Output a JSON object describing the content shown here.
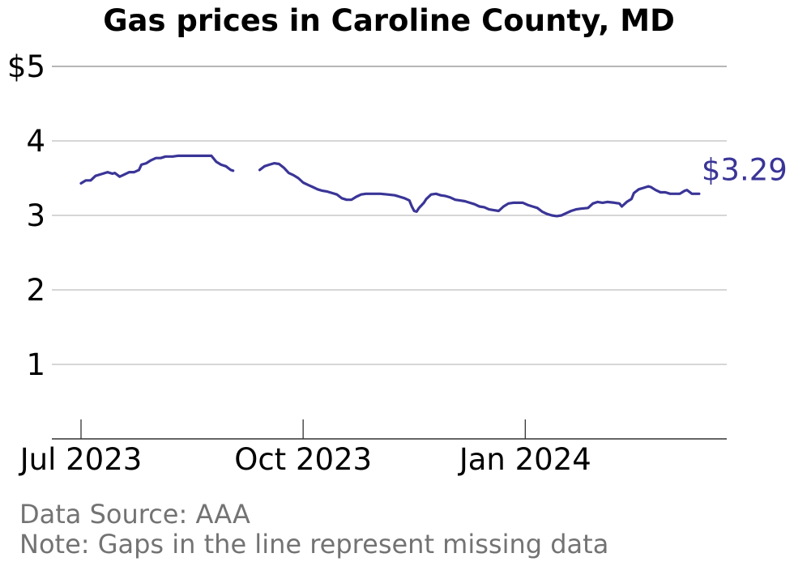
{
  "chart_data": {
    "type": "line",
    "title": "Gas prices in Caroline County, MD",
    "ylabel": "",
    "xlabel": "",
    "ylim": [
      0,
      5
    ],
    "y_ticks": [
      {
        "value": 5,
        "label": "$5"
      },
      {
        "value": 4,
        "label": "4"
      },
      {
        "value": 3,
        "label": "3"
      },
      {
        "value": 2,
        "label": "2"
      },
      {
        "value": 1,
        "label": "1"
      }
    ],
    "x_ticks": [
      {
        "date": "2023-07-01",
        "label": "Jul 2023"
      },
      {
        "date": "2023-10-01",
        "label": "Oct 2023"
      },
      {
        "date": "2024-01-01",
        "label": "Jan 2024"
      }
    ],
    "xlim": [
      "2023-06-20",
      "2024-03-30"
    ],
    "grid": true,
    "line_color": "#3a3597",
    "end_label": "$3.29",
    "series": [
      {
        "segments": [
          [
            [
              "2023-07-01",
              3.43
            ],
            [
              "2023-07-03",
              3.47
            ],
            [
              "2023-07-05",
              3.47
            ],
            [
              "2023-07-07",
              3.53
            ],
            [
              "2023-07-10",
              3.56
            ],
            [
              "2023-07-12",
              3.58
            ],
            [
              "2023-07-14",
              3.56
            ],
            [
              "2023-07-15",
              3.57
            ],
            [
              "2023-07-17",
              3.52
            ],
            [
              "2023-07-19",
              3.55
            ],
            [
              "2023-07-21",
              3.58
            ],
            [
              "2023-07-23",
              3.58
            ],
            [
              "2023-07-25",
              3.61
            ],
            [
              "2023-07-26",
              3.68
            ],
            [
              "2023-07-28",
              3.7
            ],
            [
              "2023-07-30",
              3.74
            ],
            [
              "2023-08-01",
              3.77
            ],
            [
              "2023-08-03",
              3.77
            ],
            [
              "2023-08-05",
              3.79
            ],
            [
              "2023-08-08",
              3.79
            ],
            [
              "2023-08-10",
              3.8
            ],
            [
              "2023-08-13",
              3.8
            ],
            [
              "2023-08-16",
              3.8
            ],
            [
              "2023-08-20",
              3.8
            ],
            [
              "2023-08-24",
              3.8
            ],
            [
              "2023-08-26",
              3.72
            ],
            [
              "2023-08-28",
              3.68
            ],
            [
              "2023-08-30",
              3.66
            ],
            [
              "2023-09-01",
              3.61
            ],
            [
              "2023-09-02",
              3.6
            ]
          ],
          [
            [
              "2023-09-13",
              3.61
            ],
            [
              "2023-09-15",
              3.66
            ],
            [
              "2023-09-17",
              3.68
            ],
            [
              "2023-09-19",
              3.7
            ],
            [
              "2023-09-21",
              3.69
            ],
            [
              "2023-09-23",
              3.64
            ],
            [
              "2023-09-25",
              3.57
            ],
            [
              "2023-09-27",
              3.54
            ],
            [
              "2023-09-29",
              3.5
            ],
            [
              "2023-10-01",
              3.44
            ],
            [
              "2023-10-03",
              3.41
            ],
            [
              "2023-10-05",
              3.38
            ],
            [
              "2023-10-07",
              3.35
            ],
            [
              "2023-10-09",
              3.33
            ],
            [
              "2023-10-11",
              3.32
            ],
            [
              "2023-10-13",
              3.3
            ],
            [
              "2023-10-15",
              3.28
            ],
            [
              "2023-10-17",
              3.23
            ],
            [
              "2023-10-19",
              3.21
            ],
            [
              "2023-10-21",
              3.21
            ],
            [
              "2023-10-23",
              3.25
            ],
            [
              "2023-10-25",
              3.28
            ],
            [
              "2023-10-27",
              3.29
            ],
            [
              "2023-10-30",
              3.29
            ],
            [
              "2023-11-02",
              3.29
            ],
            [
              "2023-11-05",
              3.28
            ],
            [
              "2023-11-08",
              3.27
            ],
            [
              "2023-11-10",
              3.25
            ],
            [
              "2023-11-12",
              3.23
            ],
            [
              "2023-11-14",
              3.2
            ],
            [
              "2023-11-15",
              3.12
            ],
            [
              "2023-11-16",
              3.06
            ],
            [
              "2023-11-17",
              3.05
            ],
            [
              "2023-11-18",
              3.1
            ],
            [
              "2023-11-20",
              3.17
            ],
            [
              "2023-11-21",
              3.22
            ],
            [
              "2023-11-23",
              3.28
            ],
            [
              "2023-11-25",
              3.29
            ],
            [
              "2023-11-27",
              3.27
            ],
            [
              "2023-11-29",
              3.26
            ],
            [
              "2023-12-01",
              3.24
            ],
            [
              "2023-12-03",
              3.21
            ],
            [
              "2023-12-05",
              3.2
            ],
            [
              "2023-12-07",
              3.19
            ],
            [
              "2023-12-09",
              3.17
            ],
            [
              "2023-12-11",
              3.15
            ],
            [
              "2023-12-13",
              3.12
            ],
            [
              "2023-12-15",
              3.11
            ],
            [
              "2023-12-17",
              3.08
            ],
            [
              "2023-12-19",
              3.07
            ],
            [
              "2023-12-21",
              3.06
            ],
            [
              "2023-12-23",
              3.12
            ],
            [
              "2023-12-25",
              3.16
            ],
            [
              "2023-12-27",
              3.17
            ],
            [
              "2023-12-29",
              3.17
            ],
            [
              "2023-12-31",
              3.17
            ],
            [
              "2024-01-02",
              3.14
            ],
            [
              "2024-01-04",
              3.12
            ],
            [
              "2024-01-06",
              3.1
            ],
            [
              "2024-01-08",
              3.05
            ],
            [
              "2024-01-10",
              3.02
            ],
            [
              "2024-01-12",
              3.0
            ],
            [
              "2024-01-14",
              2.99
            ],
            [
              "2024-01-16",
              3.0
            ],
            [
              "2024-01-18",
              3.03
            ],
            [
              "2024-01-20",
              3.06
            ],
            [
              "2024-01-22",
              3.08
            ],
            [
              "2024-01-24",
              3.09
            ],
            [
              "2024-01-27",
              3.1
            ],
            [
              "2024-01-29",
              3.16
            ],
            [
              "2024-01-31",
              3.18
            ],
            [
              "2024-02-02",
              3.17
            ],
            [
              "2024-02-04",
              3.18
            ],
            [
              "2024-02-07",
              3.17
            ],
            [
              "2024-02-09",
              3.16
            ],
            [
              "2024-02-10",
              3.12
            ],
            [
              "2024-02-12",
              3.18
            ],
            [
              "2024-02-14",
              3.22
            ],
            [
              "2024-02-15",
              3.3
            ],
            [
              "2024-02-17",
              3.35
            ],
            [
              "2024-02-19",
              3.37
            ],
            [
              "2024-02-21",
              3.39
            ],
            [
              "2024-02-22",
              3.38
            ],
            [
              "2024-02-24",
              3.34
            ],
            [
              "2024-02-26",
              3.31
            ],
            [
              "2024-02-28",
              3.31
            ],
            [
              "2024-03-01",
              3.29
            ],
            [
              "2024-03-03",
              3.29
            ],
            [
              "2024-03-05",
              3.29
            ],
            [
              "2024-03-07",
              3.33
            ],
            [
              "2024-03-08",
              3.34
            ],
            [
              "2024-03-10",
              3.29
            ],
            [
              "2024-03-13",
              3.29
            ]
          ]
        ]
      }
    ]
  },
  "footer": {
    "source": "Data Source: AAA",
    "note": "Note: Gaps in the line represent missing data"
  }
}
